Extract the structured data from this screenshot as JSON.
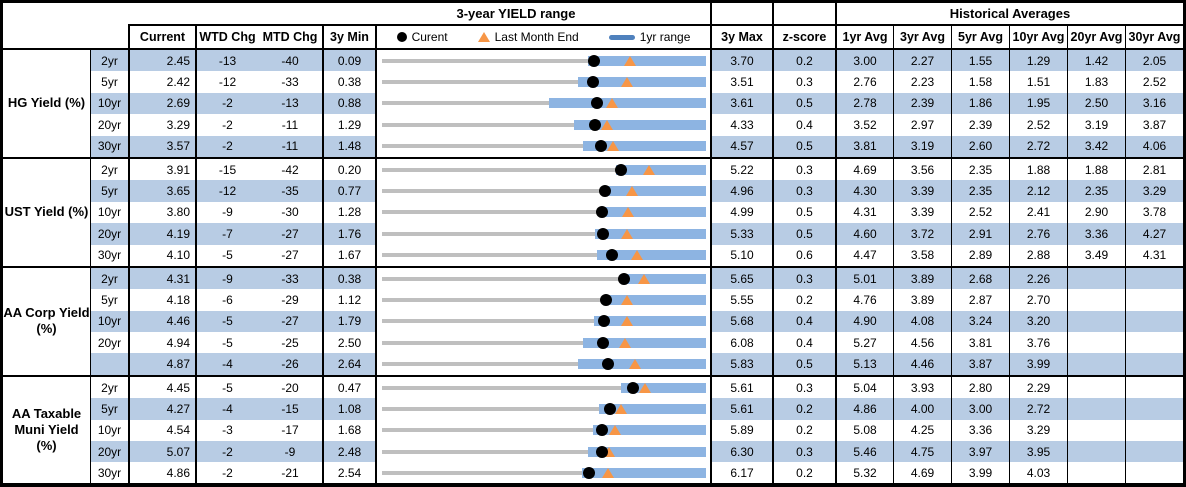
{
  "header": {
    "range_title": "3-year YIELD range",
    "historical_title": "Historical Averages",
    "current": "Current",
    "wtd": "WTD Chg",
    "mtd": "MTD Chg",
    "min": "3y Min",
    "max": "3y Max",
    "z": "z-score",
    "avg_columns": [
      "1yr Avg",
      "3yr Avg",
      "5yr Avg",
      "10yr Avg",
      "20yr Avg",
      "30yr Avg"
    ]
  },
  "legend": {
    "current": "Curent",
    "last_month_end": "Last Month End",
    "range": "1yr range"
  },
  "colors": {
    "row_shade": "#b8cce4",
    "bar_1yr_range": "#8db4e2",
    "track_3yr_range": "#bfbfbf",
    "marker_current_dot": "#000000",
    "marker_last_month_triangle": "#f79646",
    "legend_bar_swatch": "#4f81bd",
    "border": "#000000"
  },
  "chart_data": {
    "type": "table",
    "title": "3-year YIELD range with historical averages",
    "note": "Each row plots the 3y min-max range (gray track), the 1yr range (blue bar), current yield (black dot) and last month end yield (orange triangle).",
    "groups": [
      {
        "label": "HG Yield (%)",
        "rows": [
          {
            "tenor": "2yr",
            "current": "2.45",
            "wtd_chg": "-13",
            "mtd_chg": "-40",
            "min_3y": "0.09",
            "max_3y": "3.70",
            "z_score": "0.2",
            "avgs": [
              "3.00",
              "2.27",
              "1.55",
              "1.29",
              "1.42",
              "2.05"
            ],
            "last_month_end": 2.85,
            "range_1yr_low": 2.39,
            "range_1yr_high": 3.7
          },
          {
            "tenor": "5yr",
            "current": "2.42",
            "wtd_chg": "-12",
            "mtd_chg": "-33",
            "min_3y": "0.38",
            "max_3y": "3.51",
            "z_score": "0.3",
            "avgs": [
              "2.76",
              "2.23",
              "1.58",
              "1.51",
              "1.83",
              "2.52"
            ],
            "last_month_end": 2.75,
            "range_1yr_low": 2.27,
            "range_1yr_high": 3.51
          },
          {
            "tenor": "10yr",
            "current": "2.69",
            "wtd_chg": "-2",
            "mtd_chg": "-13",
            "min_3y": "0.88",
            "max_3y": "3.61",
            "z_score": "0.5",
            "avgs": [
              "2.78",
              "2.39",
              "1.86",
              "1.95",
              "2.50",
              "3.16"
            ],
            "last_month_end": 2.82,
            "range_1yr_low": 2.29,
            "range_1yr_high": 3.61
          },
          {
            "tenor": "20yr",
            "current": "3.29",
            "wtd_chg": "-2",
            "mtd_chg": "-11",
            "min_3y": "1.29",
            "max_3y": "4.33",
            "z_score": "0.4",
            "avgs": [
              "3.52",
              "2.97",
              "2.39",
              "2.52",
              "3.19",
              "3.87"
            ],
            "last_month_end": 3.4,
            "range_1yr_low": 3.09,
            "range_1yr_high": 4.33
          },
          {
            "tenor": "30yr",
            "current": "3.57",
            "wtd_chg": "-2",
            "mtd_chg": "-11",
            "min_3y": "1.48",
            "max_3y": "4.57",
            "z_score": "0.5",
            "avgs": [
              "3.81",
              "3.19",
              "2.60",
              "2.72",
              "3.42",
              "4.06"
            ],
            "last_month_end": 3.68,
            "range_1yr_low": 3.4,
            "range_1yr_high": 4.57
          }
        ]
      },
      {
        "label": "UST Yield (%)",
        "rows": [
          {
            "tenor": "2yr",
            "current": "3.91",
            "wtd_chg": "-15",
            "mtd_chg": "-42",
            "min_3y": "0.20",
            "max_3y": "5.22",
            "z_score": "0.3",
            "avgs": [
              "4.69",
              "3.56",
              "2.35",
              "1.88",
              "1.88",
              "2.81"
            ],
            "last_month_end": 4.33,
            "range_1yr_low": 3.83,
            "range_1yr_high": 5.22
          },
          {
            "tenor": "5yr",
            "current": "3.65",
            "wtd_chg": "-12",
            "mtd_chg": "-35",
            "min_3y": "0.77",
            "max_3y": "4.96",
            "z_score": "0.3",
            "avgs": [
              "4.30",
              "3.39",
              "2.35",
              "2.12",
              "2.35",
              "3.29"
            ],
            "last_month_end": 4.0,
            "range_1yr_low": 3.61,
            "range_1yr_high": 4.96
          },
          {
            "tenor": "10yr",
            "current": "3.80",
            "wtd_chg": "-9",
            "mtd_chg": "-30",
            "min_3y": "1.28",
            "max_3y": "4.99",
            "z_score": "0.5",
            "avgs": [
              "4.31",
              "3.39",
              "2.52",
              "2.41",
              "2.90",
              "3.78"
            ],
            "last_month_end": 4.1,
            "range_1yr_low": 3.77,
            "range_1yr_high": 4.99
          },
          {
            "tenor": "20yr",
            "current": "4.19",
            "wtd_chg": "-7",
            "mtd_chg": "-27",
            "min_3y": "1.76",
            "max_3y": "5.33",
            "z_score": "0.5",
            "avgs": [
              "4.60",
              "3.72",
              "2.91",
              "2.76",
              "3.36",
              "4.27"
            ],
            "last_month_end": 4.46,
            "range_1yr_low": 4.11,
            "range_1yr_high": 5.33
          },
          {
            "tenor": "30yr",
            "current": "4.10",
            "wtd_chg": "-5",
            "mtd_chg": "-27",
            "min_3y": "1.67",
            "max_3y": "5.10",
            "z_score": "0.6",
            "avgs": [
              "4.47",
              "3.58",
              "2.89",
              "2.88",
              "3.49",
              "4.31"
            ],
            "last_month_end": 4.37,
            "range_1yr_low": 3.95,
            "range_1yr_high": 5.1
          }
        ]
      },
      {
        "label": "AA Corp Yield\n(%)",
        "rows": [
          {
            "tenor": "2yr",
            "current": "4.31",
            "wtd_chg": "-9",
            "mtd_chg": "-33",
            "min_3y": "0.38",
            "max_3y": "5.65",
            "z_score": "0.3",
            "avgs": [
              "5.01",
              "3.89",
              "2.68",
              "2.26",
              "",
              ""
            ],
            "last_month_end": 4.64,
            "range_1yr_low": 4.26,
            "range_1yr_high": 5.65
          },
          {
            "tenor": "5yr",
            "current": "4.18",
            "wtd_chg": "-6",
            "mtd_chg": "-29",
            "min_3y": "1.12",
            "max_3y": "5.55",
            "z_score": "0.2",
            "avgs": [
              "4.76",
              "3.89",
              "2.87",
              "2.70",
              "",
              ""
            ],
            "last_month_end": 4.47,
            "range_1yr_low": 4.14,
            "range_1yr_high": 5.55
          },
          {
            "tenor": "10yr",
            "current": "4.46",
            "wtd_chg": "-5",
            "mtd_chg": "-27",
            "min_3y": "1.79",
            "max_3y": "5.68",
            "z_score": "0.4",
            "avgs": [
              "4.90",
              "4.08",
              "3.24",
              "3.20",
              "",
              ""
            ],
            "last_month_end": 4.73,
            "range_1yr_low": 4.33,
            "range_1yr_high": 5.68
          },
          {
            "tenor": "20yr",
            "current": "4.94",
            "wtd_chg": "-5",
            "mtd_chg": "-25",
            "min_3y": "2.50",
            "max_3y": "6.08",
            "z_score": "0.4",
            "avgs": [
              "5.27",
              "4.56",
              "3.81",
              "3.76",
              "",
              ""
            ],
            "last_month_end": 5.19,
            "range_1yr_low": 4.72,
            "range_1yr_high": 6.08
          },
          {
            "tenor": "",
            "current": "4.87",
            "wtd_chg": "-4",
            "mtd_chg": "-26",
            "min_3y": "2.64",
            "max_3y": "5.83",
            "z_score": "0.5",
            "avgs": [
              "5.13",
              "4.46",
              "3.87",
              "3.99",
              "",
              ""
            ],
            "last_month_end": 5.13,
            "range_1yr_low": 4.57,
            "range_1yr_high": 5.83
          }
        ]
      },
      {
        "label": "AA Taxable\nMuni Yield\n(%)",
        "rows": [
          {
            "tenor": "2yr",
            "current": "4.45",
            "wtd_chg": "-5",
            "mtd_chg": "-20",
            "min_3y": "0.47",
            "max_3y": "5.61",
            "z_score": "0.3",
            "avgs": [
              "5.04",
              "3.93",
              "2.80",
              "2.29",
              "",
              ""
            ],
            "last_month_end": 4.65,
            "range_1yr_low": 4.26,
            "range_1yr_high": 5.61
          },
          {
            "tenor": "5yr",
            "current": "4.27",
            "wtd_chg": "-4",
            "mtd_chg": "-15",
            "min_3y": "1.08",
            "max_3y": "5.61",
            "z_score": "0.2",
            "avgs": [
              "4.86",
              "4.00",
              "3.00",
              "2.72",
              "",
              ""
            ],
            "last_month_end": 4.42,
            "range_1yr_low": 4.12,
            "range_1yr_high": 5.61
          },
          {
            "tenor": "10yr",
            "current": "4.54",
            "wtd_chg": "-3",
            "mtd_chg": "-17",
            "min_3y": "1.68",
            "max_3y": "5.89",
            "z_score": "0.2",
            "avgs": [
              "5.08",
              "4.25",
              "3.36",
              "3.29",
              "",
              ""
            ],
            "last_month_end": 4.71,
            "range_1yr_low": 4.42,
            "range_1yr_high": 5.89
          },
          {
            "tenor": "20yr",
            "current": "5.07",
            "wtd_chg": "-2",
            "mtd_chg": "-9",
            "min_3y": "2.48",
            "max_3y": "6.30",
            "z_score": "0.3",
            "avgs": [
              "5.46",
              "4.75",
              "3.97",
              "3.95",
              "",
              ""
            ],
            "last_month_end": 5.16,
            "range_1yr_low": 4.91,
            "range_1yr_high": 6.3
          },
          {
            "tenor": "30yr",
            "current": "4.86",
            "wtd_chg": "-2",
            "mtd_chg": "-21",
            "min_3y": "2.54",
            "max_3y": "6.17",
            "z_score": "0.2",
            "avgs": [
              "5.32",
              "4.69",
              "3.99",
              "4.03",
              "",
              ""
            ],
            "last_month_end": 5.07,
            "range_1yr_low": 4.78,
            "range_1yr_high": 6.17
          }
        ]
      }
    ]
  }
}
